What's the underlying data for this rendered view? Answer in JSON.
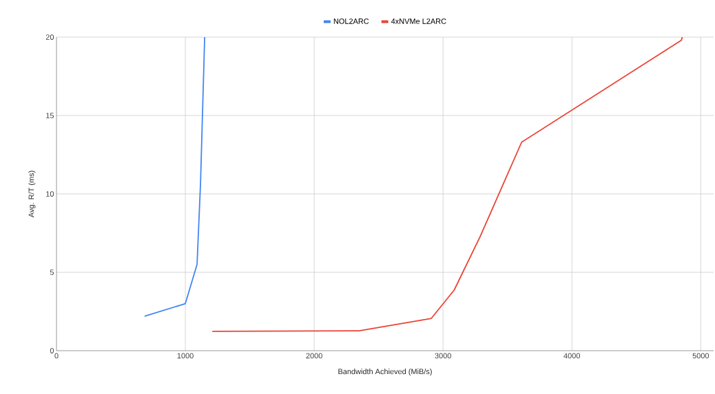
{
  "chart_data": {
    "type": "line",
    "xlabel": "Bandwidth Achieved (MiB/s)",
    "ylabel": "Avg. R/T (ms)",
    "xlim": [
      0,
      5100
    ],
    "xticks": [
      0,
      1000,
      2000,
      3000,
      4000,
      5000
    ],
    "ylim": [
      0,
      20
    ],
    "yticks": [
      0,
      5,
      10,
      15,
      20
    ],
    "grid": true,
    "legend": "top",
    "marker": "none",
    "line_style": "solid",
    "series": [
      {
        "name": "NOL2ARC",
        "color": "#4285f4",
        "x": [
          684,
          1000,
          1091,
          1118,
          1150
        ],
        "values": [
          2.2,
          3.0,
          5.5,
          10.7,
          20
        ]
      },
      {
        "name": "4xNVMe L2ARC",
        "color": "#ea4335",
        "x": [
          1209,
          2348,
          2909,
          3086,
          3289,
          3610,
          4850,
          4856
        ],
        "values": [
          1.23,
          1.27,
          2.06,
          3.86,
          7.3,
          13.3,
          19.8,
          20
        ]
      }
    ]
  }
}
